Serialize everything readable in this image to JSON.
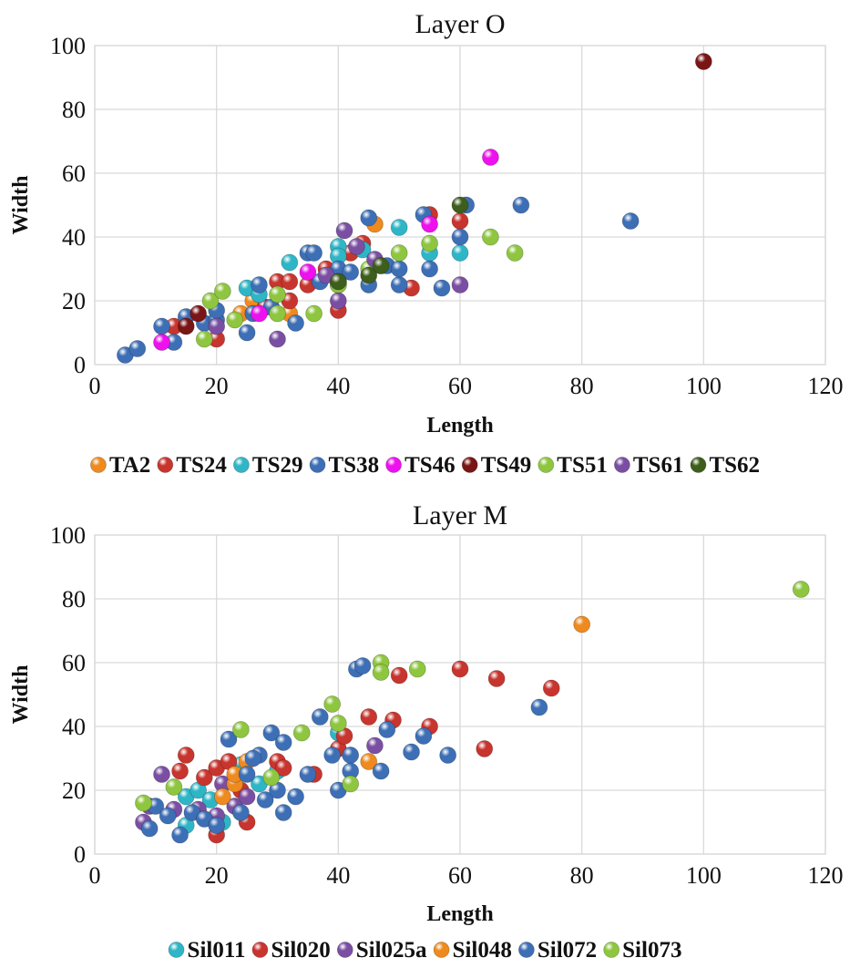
{
  "chart_data": [
    {
      "type": "scatter",
      "title": "Layer O",
      "xlabel": "Length",
      "ylabel": "Width",
      "xlim": [
        0,
        120
      ],
      "ylim": [
        0,
        100
      ],
      "xticks": [
        0,
        20,
        40,
        60,
        80,
        100,
        120
      ],
      "yticks": [
        0,
        20,
        40,
        60,
        80,
        100
      ],
      "grid": true,
      "legend_position": "bottom",
      "series": [
        {
          "name": "TA2",
          "color": "#ef8a1e",
          "points": [
            [
              24,
              16
            ],
            [
              26,
              20
            ],
            [
              32,
              16
            ],
            [
              46,
              44
            ],
            [
              40,
              25
            ]
          ]
        },
        {
          "name": "TS24",
          "color": "#c8352e",
          "points": [
            [
              13,
              12
            ],
            [
              20,
              8
            ],
            [
              28,
              18
            ],
            [
              30,
              26
            ],
            [
              32,
              20
            ],
            [
              35,
              25
            ],
            [
              38,
              30
            ],
            [
              40,
              17
            ],
            [
              42,
              35
            ],
            [
              44,
              38
            ],
            [
              52,
              24
            ],
            [
              55,
              47
            ],
            [
              60,
              45
            ],
            [
              32,
              26
            ]
          ]
        },
        {
          "name": "TS29",
          "color": "#2eb6c7",
          "points": [
            [
              25,
              24
            ],
            [
              27,
              22
            ],
            [
              32,
              32
            ],
            [
              40,
              37
            ],
            [
              44,
              36
            ],
            [
              50,
              43
            ],
            [
              55,
              35
            ],
            [
              60,
              35
            ],
            [
              47,
              31
            ],
            [
              40,
              34
            ]
          ]
        },
        {
          "name": "TS38",
          "color": "#3d6fb6",
          "points": [
            [
              5,
              3
            ],
            [
              7,
              5
            ],
            [
              11,
              12
            ],
            [
              13,
              7
            ],
            [
              15,
              15
            ],
            [
              18,
              13
            ],
            [
              20,
              14
            ],
            [
              25,
              10
            ],
            [
              27,
              25
            ],
            [
              29,
              18
            ],
            [
              33,
              13
            ],
            [
              35,
              35
            ],
            [
              37,
              26
            ],
            [
              40,
              30
            ],
            [
              42,
              29
            ],
            [
              45,
              25
            ],
            [
              45,
              46
            ],
            [
              48,
              31
            ],
            [
              50,
              25
            ],
            [
              50,
              30
            ],
            [
              54,
              47
            ],
            [
              55,
              30
            ],
            [
              57,
              24
            ],
            [
              60,
              40
            ],
            [
              61,
              50
            ],
            [
              70,
              50
            ],
            [
              88,
              45
            ],
            [
              20,
              17
            ],
            [
              26,
              16
            ],
            [
              36,
              35
            ]
          ]
        },
        {
          "name": "TS46",
          "color": "#ee10ee",
          "points": [
            [
              11,
              7
            ],
            [
              27,
              16
            ],
            [
              35,
              29
            ],
            [
              55,
              44
            ],
            [
              65,
              65
            ]
          ]
        },
        {
          "name": "TS49",
          "color": "#7a1515",
          "points": [
            [
              15,
              12
            ],
            [
              17,
              16
            ],
            [
              40,
              26
            ],
            [
              100,
              95
            ]
          ]
        },
        {
          "name": "TS51",
          "color": "#8ec63f",
          "points": [
            [
              19,
              20
            ],
            [
              21,
              23
            ],
            [
              23,
              14
            ],
            [
              30,
              16
            ],
            [
              36,
              16
            ],
            [
              40,
              25
            ],
            [
              45,
              30
            ],
            [
              50,
              35
            ],
            [
              55,
              38
            ],
            [
              65,
              40
            ],
            [
              69,
              35
            ],
            [
              30,
              22
            ],
            [
              18,
              8
            ]
          ]
        },
        {
          "name": "TS61",
          "color": "#7a4fa3",
          "points": [
            [
              20,
              12
            ],
            [
              30,
              8
            ],
            [
              38,
              28
            ],
            [
              40,
              20
            ],
            [
              41,
              42
            ],
            [
              43,
              37
            ],
            [
              46,
              33
            ],
            [
              60,
              25
            ]
          ]
        },
        {
          "name": "TS62",
          "color": "#3e5e1c",
          "points": [
            [
              40,
              26
            ],
            [
              45,
              28
            ],
            [
              47,
              31
            ],
            [
              60,
              50
            ]
          ]
        }
      ]
    },
    {
      "type": "scatter",
      "title": "Layer M",
      "xlabel": "Length",
      "ylabel": "Width",
      "xlim": [
        0,
        120
      ],
      "ylim": [
        0,
        100
      ],
      "xticks": [
        0,
        20,
        40,
        60,
        80,
        100,
        120
      ],
      "yticks": [
        0,
        20,
        40,
        60,
        80,
        100
      ],
      "grid": true,
      "legend_position": "bottom",
      "series": [
        {
          "name": "Sil011",
          "color": "#2eb6c7",
          "points": [
            [
              15,
              18
            ],
            [
              17,
              20
            ],
            [
              19,
              17
            ],
            [
              21,
              10
            ],
            [
              24,
              28
            ],
            [
              27,
              22
            ],
            [
              40,
              38
            ],
            [
              30,
              26
            ],
            [
              15,
              9
            ]
          ]
        },
        {
          "name": "Sil020",
          "color": "#c8352e",
          "points": [
            [
              14,
              26
            ],
            [
              15,
              31
            ],
            [
              18,
              24
            ],
            [
              20,
              6
            ],
            [
              20,
              27
            ],
            [
              22,
              29
            ],
            [
              24,
              20
            ],
            [
              25,
              10
            ],
            [
              30,
              29
            ],
            [
              31,
              27
            ],
            [
              36,
              25
            ],
            [
              40,
              33
            ],
            [
              41,
              37
            ],
            [
              45,
              43
            ],
            [
              49,
              42
            ],
            [
              50,
              56
            ],
            [
              55,
              40
            ],
            [
              60,
              58
            ],
            [
              64,
              33
            ],
            [
              66,
              55
            ],
            [
              75,
              52
            ]
          ]
        },
        {
          "name": "Sil025a",
          "color": "#7a4fa3",
          "points": [
            [
              8,
              10
            ],
            [
              9,
              15
            ],
            [
              11,
              25
            ],
            [
              13,
              14
            ],
            [
              17,
              14
            ],
            [
              20,
              12
            ],
            [
              21,
              22
            ],
            [
              23,
              15
            ],
            [
              25,
              18
            ],
            [
              46,
              34
            ]
          ]
        },
        {
          "name": "Sil048",
          "color": "#ef8a1e",
          "points": [
            [
              21,
              18
            ],
            [
              23,
              22
            ],
            [
              23,
              25
            ],
            [
              25,
              29
            ],
            [
              45,
              29
            ],
            [
              80,
              72
            ]
          ]
        },
        {
          "name": "Sil072",
          "color": "#3d6fb6",
          "points": [
            [
              9,
              8
            ],
            [
              10,
              15
            ],
            [
              12,
              12
            ],
            [
              14,
              6
            ],
            [
              16,
              13
            ],
            [
              18,
              11
            ],
            [
              20,
              9
            ],
            [
              22,
              36
            ],
            [
              24,
              13
            ],
            [
              25,
              25
            ],
            [
              27,
              31
            ],
            [
              28,
              17
            ],
            [
              29,
              38
            ],
            [
              31,
              35
            ],
            [
              31,
              13
            ],
            [
              33,
              18
            ],
            [
              35,
              25
            ],
            [
              37,
              43
            ],
            [
              39,
              31
            ],
            [
              40,
              20
            ],
            [
              42,
              31
            ],
            [
              43,
              58
            ],
            [
              44,
              59
            ],
            [
              47,
              26
            ],
            [
              48,
              39
            ],
            [
              52,
              32
            ],
            [
              54,
              37
            ],
            [
              58,
              31
            ],
            [
              73,
              46
            ],
            [
              30,
              20
            ],
            [
              26,
              30
            ],
            [
              42,
              26
            ]
          ]
        },
        {
          "name": "Sil073",
          "color": "#8ec63f",
          "points": [
            [
              8,
              16
            ],
            [
              13,
              21
            ],
            [
              24,
              39
            ],
            [
              29,
              24
            ],
            [
              34,
              38
            ],
            [
              39,
              47
            ],
            [
              40,
              41
            ],
            [
              42,
              22
            ],
            [
              47,
              60
            ],
            [
              47,
              57
            ],
            [
              53,
              58
            ],
            [
              116,
              83
            ]
          ]
        }
      ]
    }
  ]
}
